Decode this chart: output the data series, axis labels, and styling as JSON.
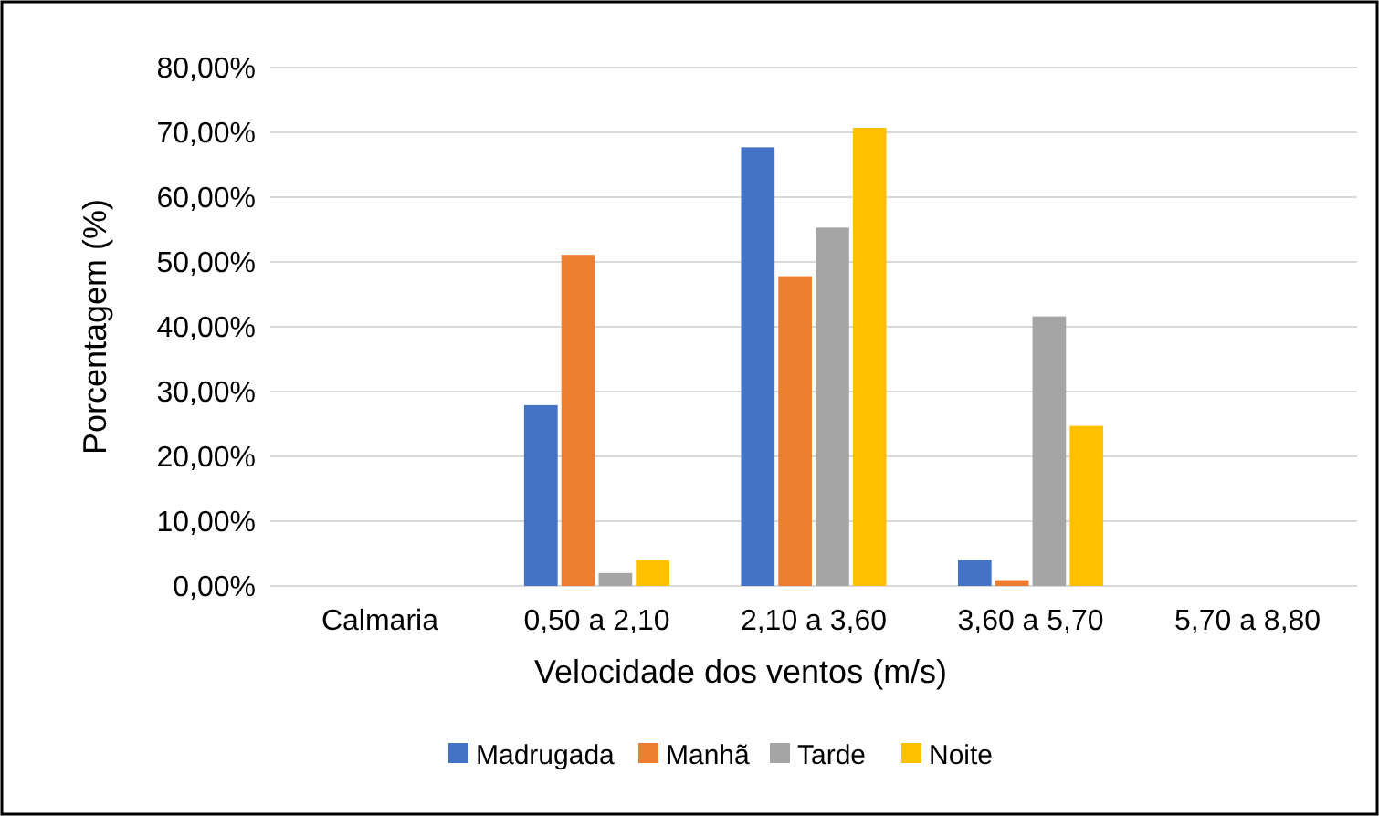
{
  "chart_data": {
    "type": "bar",
    "xlabel": "Velocidade dos ventos (m/s)",
    "ylabel": "Porcentagem (%)",
    "categories": [
      "Calmaria",
      "0,50 a 2,10",
      "2,10 a 3,60",
      "3,60 a 5,70",
      "5,70 a 8,80"
    ],
    "series": [
      {
        "name": "Madrugada",
        "color": "#4472c4",
        "values": [
          0,
          27.9,
          67.7,
          4.0,
          0
        ]
      },
      {
        "name": "Manhã",
        "color": "#ed7d31",
        "values": [
          0,
          51.1,
          47.8,
          0.9,
          0
        ]
      },
      {
        "name": "Tarde",
        "color": "#a5a5a5",
        "values": [
          0,
          2.0,
          55.3,
          41.6,
          0
        ]
      },
      {
        "name": "Noite",
        "color": "#ffc000",
        "values": [
          0,
          4.0,
          70.7,
          24.7,
          0
        ]
      }
    ],
    "ylim": [
      0,
      80
    ],
    "yticks": [
      {
        "value": 0,
        "label": "0,00%"
      },
      {
        "value": 10,
        "label": "10,00%"
      },
      {
        "value": 20,
        "label": "20,00%"
      },
      {
        "value": 30,
        "label": "30,00%"
      },
      {
        "value": 40,
        "label": "40,00%"
      },
      {
        "value": 50,
        "label": "50,00%"
      },
      {
        "value": 60,
        "label": "60,00%"
      },
      {
        "value": 70,
        "label": "70,00%"
      },
      {
        "value": 80,
        "label": "80,00%"
      }
    ],
    "grid": "y",
    "legend": "bottom"
  }
}
